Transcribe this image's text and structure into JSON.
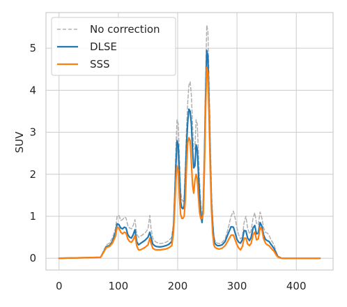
{
  "chart_data": {
    "type": "line",
    "title": "",
    "xlabel": "",
    "ylabel": "SUV",
    "xlim": [
      -22,
      462
    ],
    "ylim": [
      -0.28,
      5.85
    ],
    "xticks": [
      0,
      100,
      200,
      300,
      400
    ],
    "yticks": [
      0,
      1,
      2,
      3,
      4,
      5
    ],
    "grid": true,
    "legend_position": "upper-left",
    "series": [
      {
        "name": "No correction",
        "color": "#b0b0b0",
        "style": "dashed",
        "x": [
          0,
          70,
          75,
          80,
          85,
          90,
          95,
          98,
          101,
          104,
          107,
          110,
          113,
          116,
          119,
          122,
          125,
          128,
          131,
          134,
          137,
          140,
          145,
          150,
          153,
          155,
          158,
          161,
          164,
          170,
          175,
          180,
          185,
          190,
          193,
          195,
          197,
          199,
          201,
          203,
          205,
          207,
          209,
          211,
          213,
          215,
          217,
          219,
          221,
          223,
          225,
          227,
          229,
          231,
          233,
          235,
          237,
          239,
          241,
          243,
          245,
          247,
          249,
          251,
          253,
          255,
          257,
          259,
          261,
          263,
          265,
          267,
          270,
          275,
          280,
          285,
          290,
          294,
          297,
          300,
          303,
          306,
          309,
          312,
          315,
          318,
          321,
          324,
          327,
          330,
          333,
          336,
          339,
          342,
          345,
          348,
          351,
          354,
          357,
          360,
          363,
          366,
          369,
          372,
          375,
          378,
          381,
          384,
          387,
          390,
          395,
          400,
          410,
          420,
          440
        ],
        "y": [
          0.0,
          0.02,
          0.18,
          0.32,
          0.36,
          0.48,
          0.7,
          1.0,
          1.02,
          0.9,
          0.92,
          0.98,
          0.96,
          0.78,
          0.72,
          0.7,
          0.78,
          0.92,
          0.58,
          0.5,
          0.52,
          0.55,
          0.6,
          0.7,
          1.02,
          0.72,
          0.48,
          0.42,
          0.38,
          0.35,
          0.36,
          0.38,
          0.42,
          0.5,
          0.85,
          1.6,
          2.6,
          3.3,
          3.2,
          2.4,
          1.6,
          1.4,
          1.35,
          1.45,
          2.2,
          3.1,
          3.7,
          4.12,
          4.2,
          3.9,
          3.2,
          2.6,
          2.6,
          3.3,
          3.2,
          2.5,
          1.8,
          1.3,
          0.95,
          1.35,
          2.6,
          4.2,
          5.55,
          5.4,
          4.2,
          2.8,
          1.6,
          0.95,
          0.55,
          0.42,
          0.38,
          0.36,
          0.35,
          0.38,
          0.46,
          0.7,
          1.0,
          1.12,
          0.95,
          0.72,
          0.55,
          0.46,
          0.5,
          0.85,
          1.0,
          0.72,
          0.58,
          0.66,
          0.95,
          1.08,
          0.82,
          0.8,
          1.1,
          0.95,
          0.72,
          0.62,
          0.6,
          0.55,
          0.45,
          0.38,
          0.3,
          0.15,
          0.05,
          0.02,
          0.0,
          0.0,
          0.0,
          0.0,
          0.0,
          0.0,
          0.0,
          0.0,
          0.0,
          0.0,
          0.0
        ]
      },
      {
        "name": "DLSE",
        "color": "#1f77b4",
        "style": "solid",
        "x": [
          0,
          70,
          75,
          80,
          85,
          90,
          95,
          98,
          101,
          104,
          107,
          110,
          113,
          116,
          119,
          122,
          125,
          128,
          131,
          134,
          137,
          140,
          145,
          150,
          153,
          155,
          158,
          161,
          164,
          170,
          175,
          180,
          185,
          190,
          193,
          195,
          197,
          199,
          201,
          203,
          205,
          207,
          209,
          211,
          213,
          215,
          217,
          219,
          221,
          223,
          225,
          227,
          229,
          231,
          233,
          235,
          237,
          239,
          241,
          243,
          245,
          247,
          249,
          251,
          253,
          255,
          257,
          259,
          261,
          263,
          265,
          267,
          270,
          275,
          280,
          285,
          290,
          294,
          297,
          300,
          303,
          306,
          309,
          312,
          315,
          318,
          321,
          324,
          327,
          330,
          333,
          336,
          339,
          342,
          345,
          348,
          351,
          354,
          357,
          360,
          363,
          366,
          369,
          372,
          375,
          378,
          381,
          384,
          387,
          390,
          395,
          400,
          410,
          420,
          440
        ],
        "y": [
          0.0,
          0.02,
          0.15,
          0.28,
          0.3,
          0.4,
          0.6,
          0.82,
          0.8,
          0.72,
          0.7,
          0.74,
          0.72,
          0.56,
          0.5,
          0.48,
          0.56,
          0.68,
          0.4,
          0.32,
          0.35,
          0.38,
          0.43,
          0.5,
          0.62,
          0.5,
          0.34,
          0.3,
          0.28,
          0.27,
          0.28,
          0.3,
          0.33,
          0.4,
          0.72,
          1.4,
          2.2,
          2.8,
          2.7,
          2.0,
          1.35,
          1.2,
          1.18,
          1.25,
          1.9,
          2.7,
          3.25,
          3.55,
          3.5,
          3.2,
          2.6,
          2.15,
          2.2,
          2.7,
          2.6,
          2.0,
          1.5,
          1.05,
          0.85,
          1.15,
          2.3,
          3.8,
          4.95,
          4.8,
          3.6,
          2.3,
          1.3,
          0.8,
          0.45,
          0.35,
          0.32,
          0.3,
          0.3,
          0.32,
          0.4,
          0.58,
          0.75,
          0.74,
          0.6,
          0.45,
          0.38,
          0.36,
          0.44,
          0.66,
          0.65,
          0.48,
          0.42,
          0.5,
          0.72,
          0.78,
          0.58,
          0.6,
          0.85,
          0.76,
          0.55,
          0.45,
          0.42,
          0.4,
          0.34,
          0.28,
          0.22,
          0.12,
          0.04,
          0.02,
          0.0,
          0.0,
          0.0,
          0.0,
          0.0,
          0.0,
          0.0,
          0.0,
          0.0,
          0.0,
          0.0
        ]
      },
      {
        "name": "SSS",
        "color": "#ff7f0e",
        "style": "solid",
        "x": [
          0,
          70,
          75,
          80,
          85,
          90,
          95,
          98,
          101,
          104,
          107,
          110,
          113,
          116,
          119,
          122,
          125,
          128,
          131,
          134,
          137,
          140,
          145,
          150,
          153,
          155,
          158,
          161,
          164,
          170,
          175,
          180,
          185,
          190,
          193,
          195,
          197,
          199,
          201,
          203,
          205,
          207,
          209,
          211,
          213,
          215,
          217,
          219,
          221,
          223,
          225,
          227,
          229,
          231,
          233,
          235,
          237,
          239,
          241,
          243,
          245,
          247,
          249,
          251,
          253,
          255,
          257,
          259,
          261,
          263,
          265,
          267,
          270,
          275,
          280,
          285,
          290,
          294,
          297,
          300,
          303,
          306,
          309,
          312,
          315,
          318,
          321,
          324,
          327,
          330,
          333,
          336,
          339,
          342,
          345,
          348,
          351,
          354,
          357,
          360,
          363,
          366,
          369,
          372,
          375,
          378,
          381,
          384,
          387,
          390,
          395,
          400,
          410,
          420,
          440
        ],
        "y": [
          0.0,
          0.02,
          0.14,
          0.26,
          0.28,
          0.36,
          0.52,
          0.74,
          0.72,
          0.62,
          0.58,
          0.62,
          0.6,
          0.46,
          0.4,
          0.38,
          0.44,
          0.54,
          0.3,
          0.2,
          0.2,
          0.22,
          0.26,
          0.32,
          0.48,
          0.36,
          0.24,
          0.21,
          0.2,
          0.2,
          0.21,
          0.22,
          0.25,
          0.3,
          0.62,
          1.2,
          1.85,
          2.2,
          2.1,
          1.45,
          1.05,
          0.95,
          0.95,
          1.0,
          1.4,
          2.2,
          2.75,
          2.87,
          2.8,
          2.3,
          1.75,
          1.55,
          1.85,
          2.0,
          1.9,
          1.45,
          1.08,
          0.94,
          0.95,
          1.05,
          2.1,
          3.5,
          4.55,
          4.4,
          3.3,
          2.1,
          1.15,
          0.6,
          0.32,
          0.26,
          0.24,
          0.23,
          0.22,
          0.24,
          0.3,
          0.42,
          0.55,
          0.55,
          0.44,
          0.32,
          0.24,
          0.2,
          0.28,
          0.48,
          0.48,
          0.34,
          0.3,
          0.36,
          0.56,
          0.62,
          0.44,
          0.46,
          0.74,
          0.68,
          0.46,
          0.36,
          0.32,
          0.3,
          0.25,
          0.2,
          0.16,
          0.08,
          0.03,
          0.01,
          0.0,
          0.0,
          0.0,
          0.0,
          0.0,
          0.0,
          0.0,
          0.0,
          0.0,
          0.0,
          0.0
        ]
      }
    ]
  }
}
